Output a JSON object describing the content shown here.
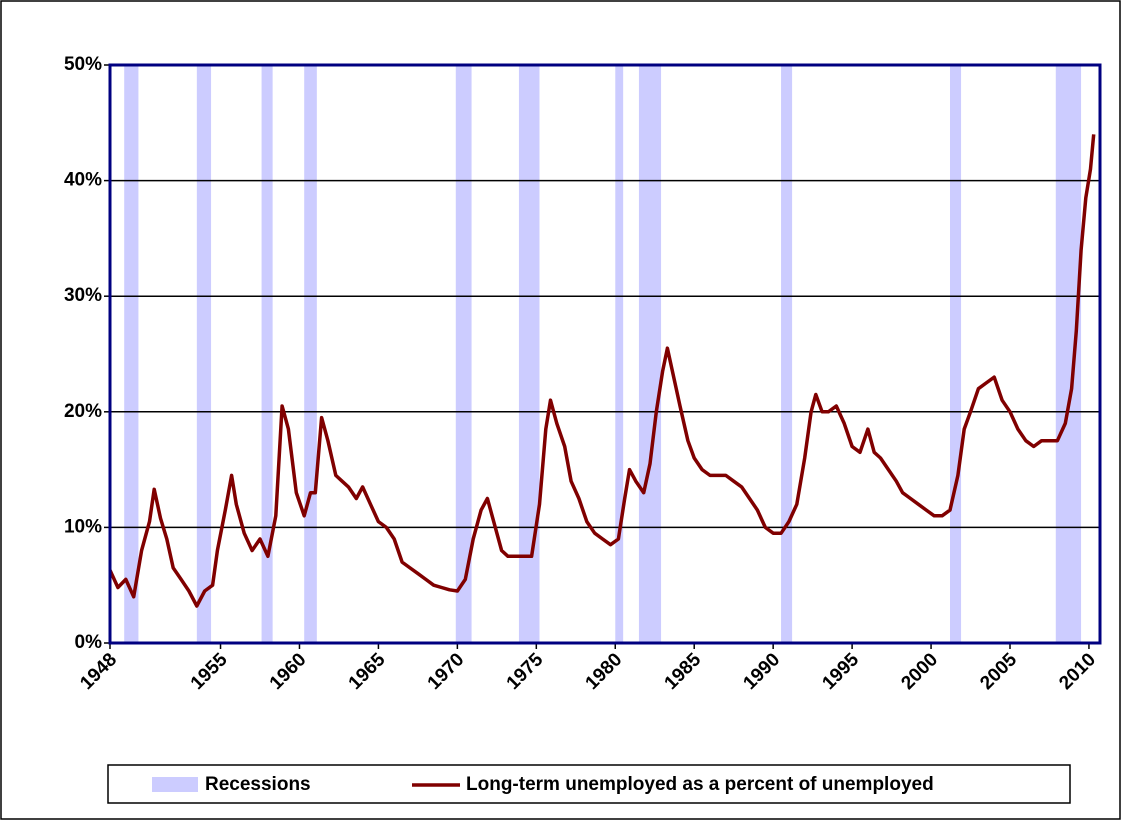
{
  "chart_data": {
    "type": "line",
    "x": [
      1948.0,
      1948.5,
      1949.0,
      1949.5,
      1950.0,
      1950.5,
      1950.8,
      1951.2,
      1951.6,
      1952.0,
      1952.5,
      1953.0,
      1953.5,
      1954.0,
      1954.5,
      1954.8,
      1955.3,
      1955.7,
      1956.0,
      1956.5,
      1957.0,
      1957.5,
      1958.0,
      1958.5,
      1958.9,
      1959.3,
      1959.8,
      1960.3,
      1960.7,
      1961.0,
      1961.4,
      1961.8,
      1962.3,
      1962.7,
      1963.1,
      1963.6,
      1964.0,
      1964.5,
      1965.0,
      1965.5,
      1966.0,
      1966.5,
      1967.0,
      1967.5,
      1968.0,
      1968.5,
      1969.0,
      1969.5,
      1970.0,
      1970.5,
      1971.0,
      1971.5,
      1971.9,
      1972.3,
      1972.8,
      1973.2,
      1973.7,
      1974.2,
      1974.7,
      1975.2,
      1975.6,
      1975.9,
      1976.3,
      1976.8,
      1977.2,
      1977.7,
      1978.2,
      1978.7,
      1979.2,
      1979.7,
      1980.2,
      1980.6,
      1980.9,
      1981.3,
      1981.8,
      1982.2,
      1982.6,
      1983.0,
      1983.3,
      1983.7,
      1984.1,
      1984.6,
      1985.0,
      1985.5,
      1986.0,
      1986.5,
      1987.0,
      1987.5,
      1988.0,
      1988.5,
      1989.0,
      1989.5,
      1990.0,
      1990.5,
      1991.0,
      1991.5,
      1992.0,
      1992.4,
      1992.7,
      1993.1,
      1993.5,
      1994.0,
      1994.5,
      1995.0,
      1995.5,
      1996.0,
      1996.4,
      1996.8,
      1997.3,
      1997.8,
      1998.2,
      1998.7,
      1999.2,
      1999.7,
      2000.2,
      2000.7,
      2001.2,
      2001.7,
      2002.1,
      2002.5,
      2003.0,
      2003.5,
      2004.0,
      2004.5,
      2005.0,
      2005.5,
      2006.0,
      2006.5,
      2007.0,
      2007.5,
      2008.0,
      2008.5,
      2008.9,
      2009.2,
      2009.5,
      2009.8,
      2010.1,
      2010.3
    ],
    "series": [
      {
        "name": "Long-term unemployed as a percent of unemployed",
        "color": "#800000",
        "values": [
          6.3,
          4.8,
          5.5,
          4.0,
          8.0,
          10.5,
          13.3,
          10.8,
          9.0,
          6.5,
          5.5,
          4.5,
          3.2,
          4.5,
          5.0,
          8.0,
          11.5,
          14.5,
          12.0,
          9.5,
          8.0,
          9.0,
          7.5,
          11.0,
          20.5,
          18.5,
          13.0,
          11.0,
          13.0,
          13.0,
          19.5,
          17.5,
          14.5,
          14.0,
          13.5,
          12.5,
          13.5,
          12.0,
          10.5,
          10.0,
          9.0,
          7.0,
          6.5,
          6.0,
          5.5,
          5.0,
          4.8,
          4.6,
          4.5,
          5.5,
          9.0,
          11.5,
          12.5,
          10.5,
          8.0,
          7.5,
          7.5,
          7.5,
          7.5,
          12.0,
          18.5,
          21.0,
          19.0,
          17.0,
          14.0,
          12.5,
          10.5,
          9.5,
          9.0,
          8.5,
          9.0,
          12.5,
          15.0,
          14.0,
          13.0,
          15.5,
          20.0,
          23.5,
          25.5,
          23.0,
          20.5,
          17.5,
          16.0,
          15.0,
          14.5,
          14.5,
          14.5,
          14.0,
          13.5,
          12.5,
          11.5,
          10.0,
          9.5,
          9.5,
          10.5,
          12.0,
          16.0,
          20.0,
          21.5,
          20.0,
          20.0,
          20.5,
          19.0,
          17.0,
          16.5,
          18.5,
          16.5,
          16.0,
          15.0,
          14.0,
          13.0,
          12.5,
          12.0,
          11.5,
          11.0,
          11.0,
          11.5,
          14.5,
          18.5,
          20.0,
          22.0,
          22.5,
          23.0,
          21.0,
          20.0,
          18.5,
          17.5,
          17.0,
          17.5,
          17.5,
          17.5,
          19.0,
          22.0,
          27.0,
          34.0,
          38.5,
          41.0,
          44.0
        ]
      }
    ],
    "recessions": {
      "name": "Recessions",
      "color": "#ccccff",
      "periods": [
        [
          1948.9,
          1949.8
        ],
        [
          1953.5,
          1954.4
        ],
        [
          1957.6,
          1958.3
        ],
        [
          1960.3,
          1961.1
        ],
        [
          1969.9,
          1970.9
        ],
        [
          1973.9,
          1975.2
        ],
        [
          1980.0,
          1980.5
        ],
        [
          1981.5,
          1982.9
        ],
        [
          1990.5,
          1991.2
        ],
        [
          2001.2,
          2001.9
        ],
        [
          2007.9,
          2009.5
        ]
      ]
    },
    "xlim": [
      1948,
      2010.7
    ],
    "xticks": [
      1948,
      1955,
      1960,
      1965,
      1970,
      1975,
      1980,
      1985,
      1990,
      1995,
      2000,
      2005,
      2010
    ],
    "ylim": [
      0,
      50
    ],
    "yticks": [
      {
        "value": 0,
        "label": "0%"
      },
      {
        "value": 10,
        "label": "10%"
      },
      {
        "value": 20,
        "label": "20%"
      },
      {
        "value": 30,
        "label": "30%"
      },
      {
        "value": 40,
        "label": "40%"
      },
      {
        "value": 50,
        "label": "50%"
      }
    ],
    "grid": true
  }
}
